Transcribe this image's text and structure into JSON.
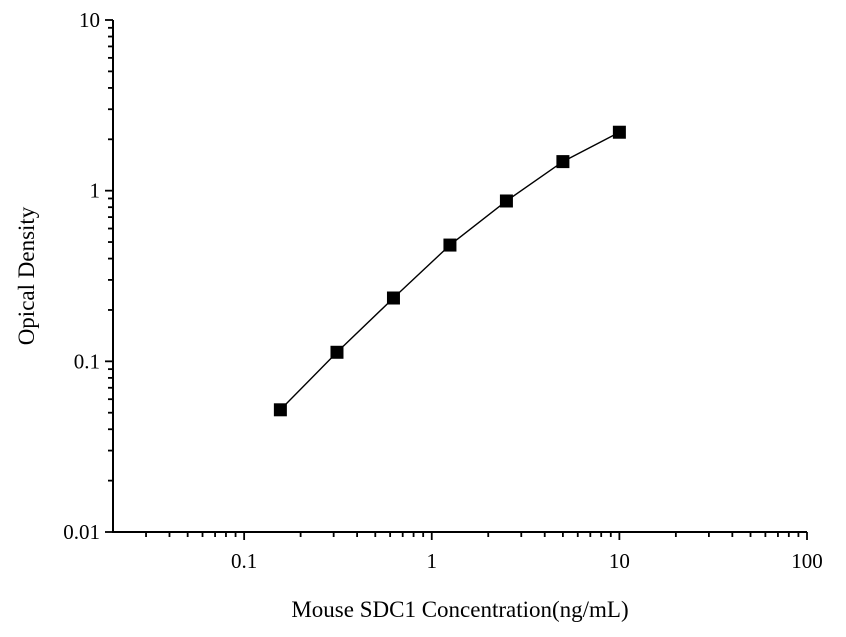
{
  "chart_data": {
    "type": "line",
    "title": "",
    "xlabel": "Mouse SDC1 Concentration(ng/mL)",
    "ylabel": "Opical Density",
    "xscale": "log",
    "yscale": "log",
    "xlim": [
      0.02,
      100
    ],
    "ylim": [
      0.01,
      10
    ],
    "x": [
      0.156,
      0.3125,
      0.625,
      1.25,
      2.5,
      5,
      10
    ],
    "y": [
      0.052,
      0.113,
      0.235,
      0.48,
      0.87,
      1.48,
      2.2
    ],
    "x_major_ticks": [
      0.1,
      1,
      10,
      100
    ],
    "x_major_labels": [
      "0.1",
      "1",
      "10",
      "100"
    ],
    "y_major_ticks": [
      0.01,
      0.1,
      1,
      10
    ],
    "y_major_labels": [
      "0.01",
      "0.1",
      "1",
      "10"
    ],
    "grid": false,
    "legend": null,
    "marker": "square",
    "colors": {
      "line": "#000000",
      "marker": "#000000",
      "axis": "#000000",
      "text": "#000000",
      "background": "#ffffff"
    }
  }
}
